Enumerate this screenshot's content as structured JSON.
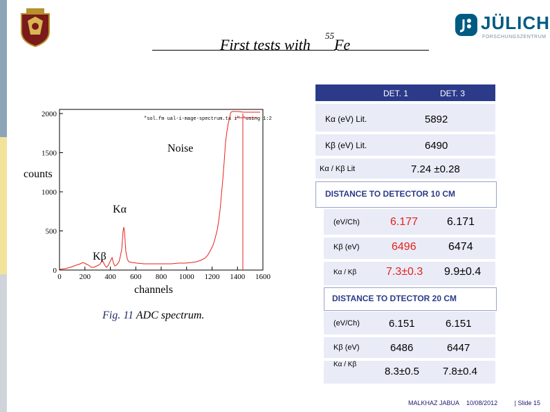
{
  "title": {
    "main": "First  tests with ",
    "sup": "55",
    "element": "Fe"
  },
  "logo": {
    "name": "JÜLICH",
    "subtitle": "FORSCHUNGSZENTRUM"
  },
  "plot": {
    "inner_legend": "\"sol.fm ual-i-mage-spectrum.ta i\" 'using 1:2",
    "y_axis_label": "counts",
    "x_axis_label": "channels",
    "annotations": {
      "noise": "Noise",
      "ka": "Kα",
      "kb": "Kβ"
    },
    "yticks": [
      "0",
      "500",
      "1000",
      "1500",
      "2000"
    ],
    "xticks": [
      "0",
      "200",
      "400",
      "600",
      "800",
      "1000",
      "1200",
      "1400",
      "1600"
    ]
  },
  "caption": {
    "fig": "Fig. 11",
    "text": "  ADC spectrum."
  },
  "table": {
    "header": {
      "det1": "DET. 1",
      "det3": "DET.  3"
    },
    "rows": [
      {
        "label": "Kα (eV)  Lit.",
        "value": "5892"
      },
      {
        "label": "Kβ (eV) Lit.",
        "value": "6490"
      },
      {
        "label": "Kα / Kβ   Lit",
        "value": "7.24 ±0.28"
      }
    ],
    "section1": {
      "title": "DISTANCE  TO  DETECTOR  10 CM",
      "rows": [
        {
          "label": "(eV/Ch)",
          "det1": "6.177",
          "det3": "6.171"
        },
        {
          "label": "Kβ (eV)",
          "det1": "6496",
          "det3": "6474"
        },
        {
          "label": "Kα / Kβ",
          "det1": "7.3±0.3",
          "det3": "9.9±0.4"
        }
      ]
    },
    "section2": {
      "title": "DISTANCE TO DTECTOR  20 CM",
      "rows": [
        {
          "label": "(eV/Ch)",
          "det1": "6.151",
          "det3": "6.151"
        },
        {
          "label": "Kβ (eV)",
          "det1": "6486",
          "det3": "6447"
        },
        {
          "label": "Kα / Kβ",
          "det1": "8.3±0.5",
          "det3": "7.8±0.4"
        }
      ]
    }
  },
  "footer": {
    "author": "MALKHAZ JABUA",
    "date": "10/08/2012",
    "slide": "| Slide  15"
  },
  "colors": {
    "navy": "#2c3a8a",
    "band": "#e9ecf7",
    "red": "#e6201a",
    "julich_blue": "#005b82"
  }
}
